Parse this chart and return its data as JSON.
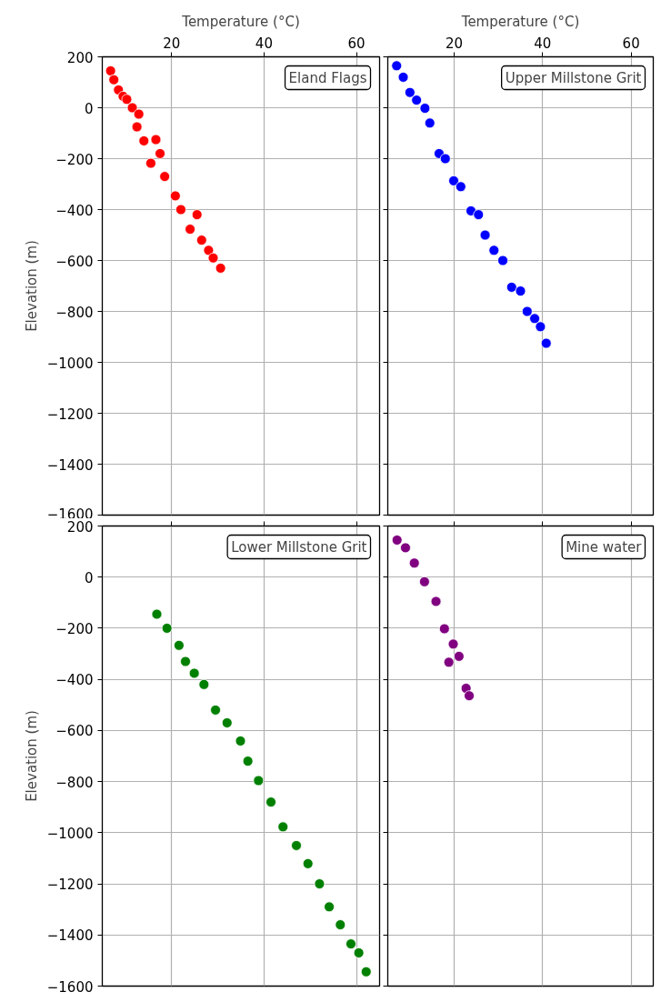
{
  "chart_data": [
    {
      "type": "scatter",
      "title": "Eland Flags",
      "xlabel": "Temperature (°C)",
      "ylabel": "Elevation (m)",
      "xlim": [
        5,
        65
      ],
      "ylim": [
        -1600,
        200
      ],
      "xticks": [
        20,
        40,
        60
      ],
      "yticks": [
        -1600,
        -1400,
        -1200,
        -1000,
        -800,
        -600,
        -400,
        -200,
        0,
        200
      ],
      "grid": true,
      "marker": "circle",
      "x": [
        6.8,
        7.5,
        8.5,
        9.5,
        10.3,
        11.5,
        12.9,
        12.5,
        14.0,
        15.5,
        16.6,
        17.5,
        18.5,
        20.8,
        22.0,
        24.0,
        25.5,
        26.5,
        28.0,
        29.0,
        30.6
      ],
      "series": [
        {
          "color": "#ff0000",
          "values": [
            145,
            110,
            70,
            45,
            33,
            0,
            -25,
            -75,
            -130,
            -218,
            -125,
            -180,
            -270,
            -346,
            -400,
            -477,
            -420,
            -520,
            -560,
            -590,
            -630
          ]
        }
      ]
    },
    {
      "type": "scatter",
      "title": "Upper Millstone Grit",
      "xlabel": "Temperature (°C)",
      "xlim": [
        5,
        65
      ],
      "ylim": [
        -1600,
        200
      ],
      "xticks": [
        20,
        40,
        60
      ],
      "yticks": [
        -1600,
        -1400,
        -1200,
        -1000,
        -800,
        -600,
        -400,
        -200,
        0,
        200
      ],
      "grid": true,
      "marker": "circle",
      "tick_labels": "x",
      "x": [
        7.0,
        8.5,
        10.0,
        11.5,
        13.4,
        14.5,
        16.6,
        18.0,
        19.9,
        21.5,
        23.8,
        25.5,
        27.0,
        29.0,
        31.0,
        33.0,
        35.0,
        36.5,
        38.2,
        39.5,
        40.8
      ],
      "series": [
        {
          "color": "#0000ff",
          "values": [
            165,
            120,
            60,
            30,
            -2,
            -60,
            -180,
            -200,
            -287,
            -310,
            -405,
            -420,
            -500,
            -560,
            -600,
            -705,
            -720,
            -800,
            -828,
            -860,
            -925
          ]
        }
      ]
    },
    {
      "type": "scatter",
      "title": "Lower Millstone Grit",
      "ylabel": "Elevation (m)",
      "xlim": [
        5,
        65
      ],
      "ylim": [
        -1600,
        200
      ],
      "xticks": [
        20,
        40,
        60
      ],
      "yticks": [
        -1600,
        -1400,
        -1200,
        -1000,
        -800,
        -600,
        -400,
        -200,
        0,
        200
      ],
      "grid": true,
      "marker": "circle",
      "tick_labels": "y",
      "x": [
        16.8,
        19.0,
        21.6,
        23.0,
        24.9,
        27.0,
        29.5,
        32.0,
        34.9,
        36.5,
        38.8,
        41.5,
        44.1,
        47.0,
        49.5,
        52.0,
        54.1,
        56.5,
        58.8,
        60.5,
        62.1
      ],
      "series": [
        {
          "color": "#008000",
          "values": [
            -145,
            -200,
            -267,
            -330,
            -376,
            -420,
            -520,
            -570,
            -641,
            -720,
            -796,
            -880,
            -977,
            -1050,
            -1121,
            -1200,
            -1290,
            -1360,
            -1435,
            -1470,
            -1544
          ]
        }
      ]
    },
    {
      "type": "scatter",
      "title": "Mine water",
      "xlim": [
        5,
        65
      ],
      "ylim": [
        -1600,
        200
      ],
      "xticks": [
        20,
        40,
        60
      ],
      "yticks": [
        -1600,
        -1400,
        -1200,
        -1000,
        -800,
        -600,
        -400,
        -200,
        0,
        200
      ],
      "grid": true,
      "marker": "circle",
      "tick_labels": false,
      "x": [
        7.1,
        9.0,
        11.0,
        13.3,
        15.9,
        17.8,
        18.8,
        19.8,
        21.1,
        22.7,
        23.4
      ],
      "series": [
        {
          "color": "#800080",
          "values": [
            145,
            115,
            55,
            -18,
            -95,
            -202,
            -333,
            -262,
            -310,
            -435,
            -464
          ]
        }
      ]
    }
  ]
}
